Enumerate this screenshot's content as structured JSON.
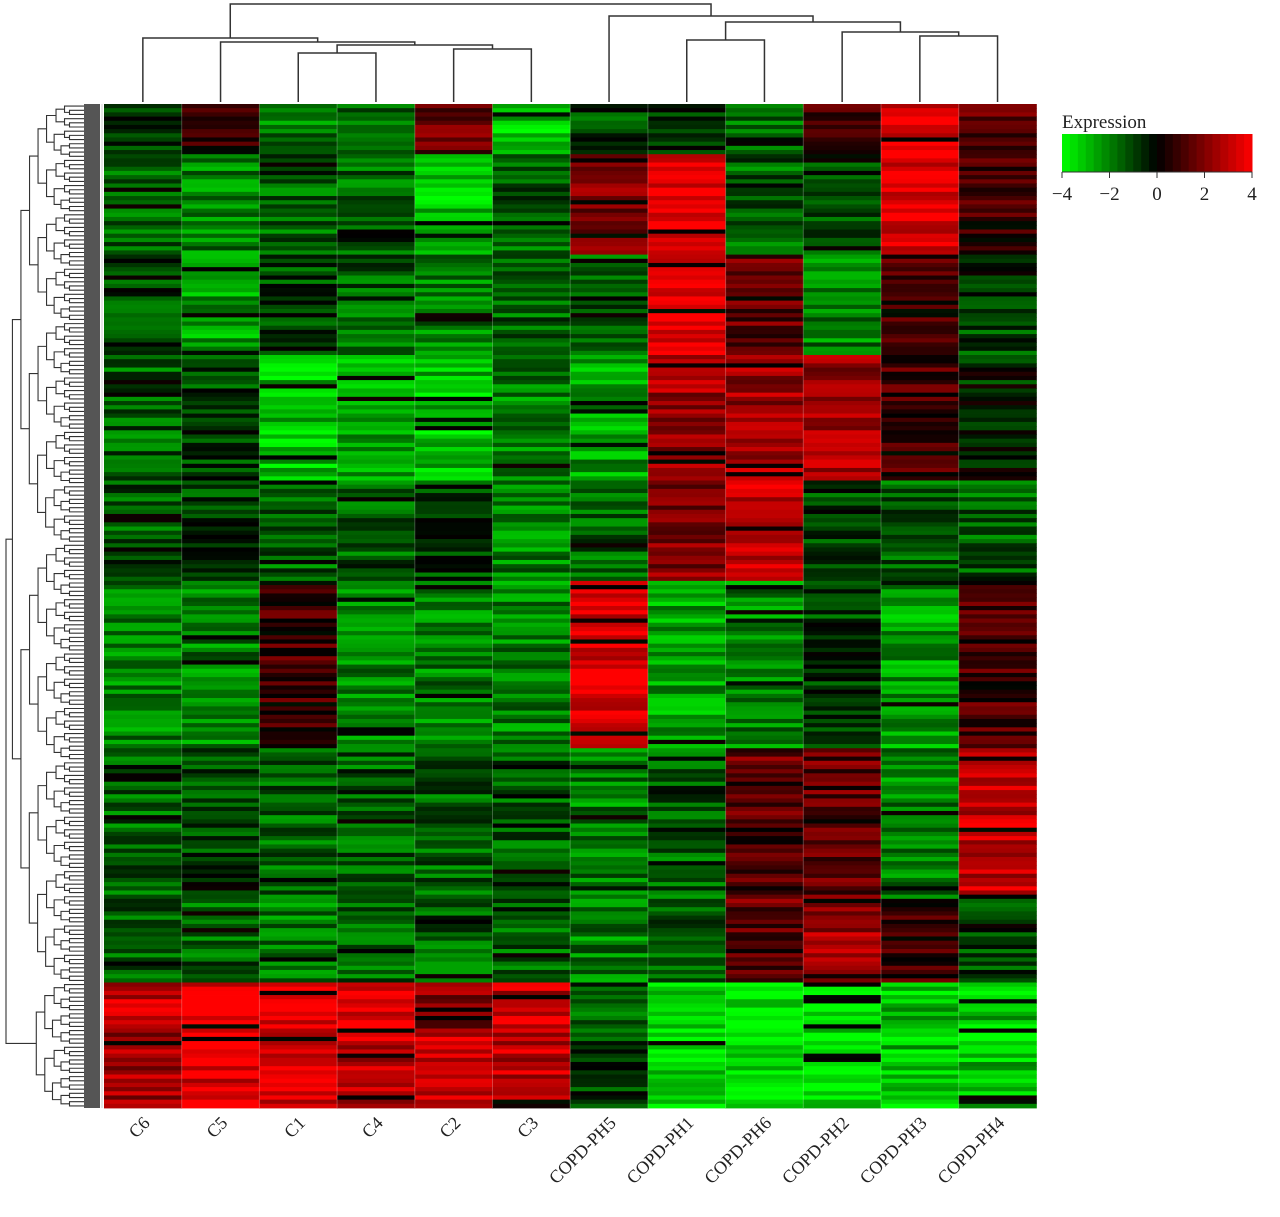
{
  "chart_data": {
    "type": "heatmap",
    "title": "",
    "xlabel": "",
    "ylabel": "",
    "columns": [
      "C6",
      "C5",
      "C1",
      "C4",
      "C2",
      "C3",
      "COPD-PH5",
      "COPD-PH1",
      "COPD-PH6",
      "COPD-PH2",
      "COPD-PH3",
      "COPD-PH4"
    ],
    "row_count": 240,
    "row_blocks": [
      {
        "rows": 12,
        "values": [
          -1.0,
          0.5,
          -2.0,
          -1.5,
          1.5,
          -3.0,
          -1.0,
          -0.5,
          -1.5,
          1.0,
          3.5,
          1.5
        ]
      },
      {
        "rows": 24,
        "values": [
          -1.5,
          -2.0,
          -1.5,
          -1.5,
          -3.0,
          -1.5,
          2.0,
          3.8,
          -1.5,
          -1.0,
          3.5,
          0.8
        ]
      },
      {
        "rows": 24,
        "values": [
          -1.0,
          -2.5,
          -1.0,
          -1.5,
          -2.0,
          -1.5,
          -1.5,
          3.5,
          1.5,
          -2.0,
          1.0,
          -1.0
        ]
      },
      {
        "rows": 30,
        "values": [
          -1.5,
          -1.0,
          -3.0,
          -2.5,
          -3.0,
          -2.0,
          -2.5,
          2.5,
          2.5,
          2.5,
          1.0,
          -0.5
        ]
      },
      {
        "rows": 24,
        "values": [
          -1.5,
          -1.0,
          -1.5,
          -1.5,
          -1.0,
          -2.0,
          -1.5,
          2.0,
          3.0,
          -1.0,
          -1.5,
          -1.5
        ]
      },
      {
        "rows": 40,
        "values": [
          -2.0,
          -2.0,
          1.0,
          -2.0,
          -2.0,
          -2.0,
          3.5,
          -2.5,
          -2.0,
          -1.0,
          -2.5,
          1.0
        ]
      },
      {
        "rows": 36,
        "values": [
          -1.5,
          -1.0,
          -1.5,
          -1.5,
          -1.5,
          -1.5,
          -2.0,
          -1.5,
          1.5,
          1.5,
          -2.0,
          3.0
        ]
      },
      {
        "rows": 20,
        "values": [
          -1.5,
          -1.5,
          -2.0,
          -1.5,
          -1.5,
          -1.5,
          -2.0,
          -1.5,
          1.5,
          2.5,
          1.0,
          -1.0
        ]
      },
      {
        "rows": 12,
        "values": [
          3.0,
          3.5,
          3.8,
          3.8,
          2.0,
          3.0,
          -1.5,
          -3.5,
          -3.5,
          -3.5,
          -3.0,
          -3.0
        ]
      },
      {
        "rows": 18,
        "values": [
          2.5,
          3.5,
          3.5,
          3.0,
          3.0,
          3.0,
          -1.0,
          -3.5,
          -3.5,
          -3.5,
          -3.0,
          -3.0
        ]
      }
    ],
    "legend": {
      "title": "Expression",
      "ticks": [
        "−4",
        "−2",
        "0",
        "2",
        "4"
      ],
      "min": -4,
      "max": 4,
      "low_color": "#00ff00",
      "mid_color": "#000000",
      "high_color": "#ff0000"
    },
    "row_dendrogram": true,
    "column_dendrogram": true
  }
}
